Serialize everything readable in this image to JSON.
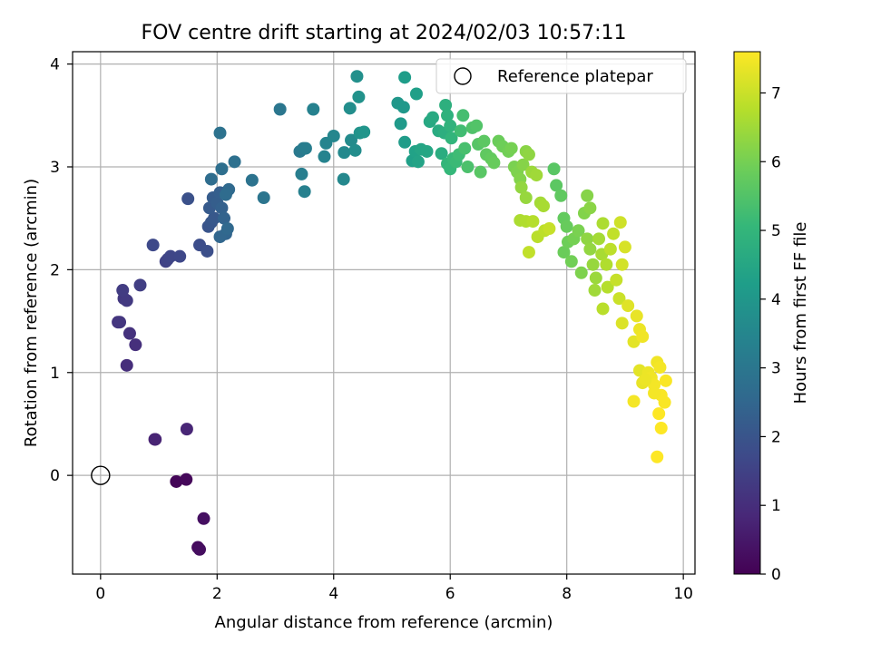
{
  "chart_data": {
    "type": "scatter",
    "title": "FOV centre drift starting at 2024/02/03 10:57:11",
    "xlabel": "Angular distance from reference (arcmin)",
    "ylabel": "Rotation from reference (arcmin)",
    "xlim": [
      -0.48,
      10.2
    ],
    "ylim": [
      -0.96,
      4.12
    ],
    "x_ticks": [
      0,
      2,
      4,
      6,
      8,
      10
    ],
    "y_ticks": [
      0,
      1,
      2,
      3,
      4
    ],
    "grid": true,
    "legend": {
      "placement": "top-right",
      "label": "Reference platepar",
      "marker": "open-circle"
    },
    "reference_point": {
      "x": 0,
      "y": 0
    },
    "colorbar": {
      "label": "Hours from first FF file",
      "colormap": "viridis",
      "range": [
        0,
        7.6
      ],
      "ticks": [
        0,
        1,
        2,
        3,
        4,
        5,
        6,
        7
      ]
    },
    "points": [
      [
        1.3,
        -0.06,
        0.1
      ],
      [
        1.47,
        -0.04,
        0.15
      ],
      [
        1.67,
        -0.7,
        0.2
      ],
      [
        1.7,
        -0.72,
        0.25
      ],
      [
        1.77,
        -0.42,
        0.3
      ],
      [
        0.93,
        0.35,
        0.7
      ],
      [
        0.94,
        0.35,
        0.75
      ],
      [
        1.48,
        0.45,
        0.8
      ],
      [
        0.45,
        1.07,
        1.0
      ],
      [
        0.6,
        1.27,
        1.05
      ],
      [
        0.5,
        1.38,
        1.1
      ],
      [
        0.3,
        1.49,
        1.15
      ],
      [
        0.33,
        1.49,
        1.2
      ],
      [
        0.4,
        1.72,
        1.25
      ],
      [
        0.45,
        1.7,
        1.3
      ],
      [
        0.38,
        1.8,
        1.35
      ],
      [
        0.68,
        1.85,
        1.4
      ],
      [
        1.12,
        2.08,
        1.5
      ],
      [
        1.15,
        2.1,
        1.55
      ],
      [
        1.2,
        2.13,
        1.6
      ],
      [
        1.36,
        2.13,
        1.65
      ],
      [
        0.9,
        2.24,
        1.7
      ],
      [
        1.7,
        2.24,
        1.8
      ],
      [
        1.83,
        2.18,
        1.85
      ],
      [
        1.5,
        2.69,
        1.9
      ],
      [
        1.85,
        2.42,
        2.0
      ],
      [
        1.9,
        2.46,
        2.05
      ],
      [
        1.95,
        2.5,
        2.1
      ],
      [
        1.87,
        2.6,
        2.15
      ],
      [
        1.93,
        2.7,
        2.2
      ],
      [
        2.0,
        2.65,
        2.25
      ],
      [
        2.05,
        2.75,
        2.3
      ],
      [
        2.08,
        2.6,
        2.35
      ],
      [
        2.12,
        2.5,
        2.4
      ],
      [
        2.15,
        2.35,
        2.45
      ],
      [
        2.05,
        2.32,
        2.5
      ],
      [
        2.18,
        2.4,
        2.55
      ],
      [
        2.2,
        2.78,
        2.6
      ],
      [
        2.15,
        2.73,
        2.65
      ],
      [
        1.9,
        2.88,
        2.7
      ],
      [
        2.08,
        2.98,
        2.75
      ],
      [
        2.3,
        3.05,
        2.8
      ],
      [
        2.05,
        3.33,
        2.85
      ],
      [
        2.6,
        2.87,
        2.9
      ],
      [
        2.8,
        2.7,
        2.95
      ],
      [
        3.08,
        3.56,
        3.0
      ],
      [
        3.42,
        3.15,
        3.1
      ],
      [
        3.48,
        3.18,
        3.15
      ],
      [
        3.52,
        3.18,
        3.2
      ],
      [
        3.45,
        2.93,
        3.25
      ],
      [
        3.5,
        2.76,
        3.3
      ],
      [
        3.65,
        3.56,
        3.35
      ],
      [
        3.84,
        3.1,
        3.4
      ],
      [
        3.87,
        3.23,
        3.45
      ],
      [
        4.0,
        3.3,
        3.5
      ],
      [
        4.17,
        2.88,
        3.55
      ],
      [
        4.18,
        3.14,
        3.6
      ],
      [
        4.3,
        3.26,
        3.65
      ],
      [
        4.37,
        3.16,
        3.7
      ],
      [
        4.28,
        3.57,
        3.75
      ],
      [
        4.4,
        3.88,
        3.8
      ],
      [
        4.43,
        3.68,
        3.85
      ],
      [
        4.45,
        3.33,
        3.9
      ],
      [
        4.52,
        3.34,
        3.95
      ],
      [
        5.1,
        3.62,
        4.0
      ],
      [
        5.2,
        3.58,
        4.05
      ],
      [
        5.15,
        3.42,
        4.1
      ],
      [
        5.22,
        3.24,
        4.15
      ],
      [
        5.22,
        3.87,
        4.2
      ],
      [
        5.42,
        3.71,
        4.25
      ],
      [
        5.35,
        3.06,
        4.3
      ],
      [
        5.4,
        3.15,
        4.35
      ],
      [
        5.45,
        3.05,
        4.4
      ],
      [
        5.5,
        3.17,
        4.45
      ],
      [
        5.6,
        3.15,
        4.5
      ],
      [
        5.65,
        3.44,
        4.55
      ],
      [
        5.7,
        3.48,
        4.6
      ],
      [
        5.8,
        3.35,
        4.65
      ],
      [
        5.85,
        3.13,
        4.7
      ],
      [
        5.9,
        3.33,
        4.75
      ],
      [
        5.92,
        3.6,
        4.8
      ],
      [
        5.95,
        3.5,
        4.85
      ],
      [
        6.0,
        3.4,
        4.9
      ],
      [
        6.02,
        3.28,
        4.95
      ],
      [
        5.95,
        3.03,
        5.0
      ],
      [
        6.0,
        2.98,
        5.05
      ],
      [
        6.05,
        3.08,
        5.1
      ],
      [
        6.1,
        3.05,
        5.15
      ],
      [
        6.15,
        3.12,
        5.2
      ],
      [
        6.18,
        3.35,
        5.25
      ],
      [
        6.22,
        3.5,
        5.3
      ],
      [
        6.25,
        3.18,
        5.35
      ],
      [
        6.3,
        3.0,
        5.4
      ],
      [
        6.38,
        3.38,
        5.45
      ],
      [
        6.45,
        3.4,
        5.5
      ],
      [
        6.48,
        3.22,
        5.55
      ],
      [
        6.52,
        2.95,
        5.6
      ],
      [
        6.58,
        3.25,
        5.65
      ],
      [
        6.62,
        3.12,
        5.7
      ],
      [
        6.7,
        3.08,
        5.75
      ],
      [
        6.75,
        3.04,
        5.8
      ],
      [
        6.83,
        3.25,
        5.85
      ],
      [
        6.9,
        3.2,
        5.9
      ],
      [
        7.0,
        3.15,
        5.95
      ],
      [
        7.05,
        3.18,
        6.0
      ],
      [
        7.1,
        3.0,
        6.05
      ],
      [
        7.15,
        2.95,
        6.1
      ],
      [
        7.2,
        2.88,
        6.15
      ],
      [
        7.25,
        3.02,
        6.2
      ],
      [
        7.3,
        3.15,
        6.25
      ],
      [
        7.35,
        3.12,
        6.3
      ],
      [
        7.22,
        2.8,
        6.35
      ],
      [
        7.3,
        2.7,
        6.4
      ],
      [
        7.4,
        2.95,
        6.45
      ],
      [
        7.48,
        2.92,
        6.5
      ],
      [
        7.55,
        2.65,
        6.55
      ],
      [
        7.6,
        2.62,
        6.6
      ],
      [
        7.2,
        2.48,
        6.65
      ],
      [
        7.3,
        2.47,
        6.7
      ],
      [
        7.42,
        2.47,
        6.75
      ],
      [
        7.5,
        2.32,
        6.8
      ],
      [
        7.62,
        2.38,
        6.85
      ],
      [
        7.35,
        2.17,
        6.9
      ],
      [
        7.7,
        2.4,
        6.95
      ]
    ],
    "points_b": [
      [
        7.78,
        2.98,
        5.6
      ],
      [
        7.82,
        2.82,
        5.65
      ],
      [
        7.9,
        2.72,
        5.7
      ],
      [
        7.95,
        2.5,
        5.75
      ],
      [
        8.0,
        2.42,
        5.8
      ],
      [
        7.95,
        2.17,
        5.85
      ],
      [
        8.02,
        2.27,
        5.9
      ],
      [
        8.08,
        2.08,
        5.95
      ],
      [
        8.12,
        2.3,
        6.0
      ],
      [
        8.2,
        2.38,
        6.05
      ],
      [
        8.25,
        1.97,
        6.1
      ],
      [
        8.3,
        2.55,
        6.15
      ],
      [
        8.35,
        2.72,
        6.2
      ],
      [
        8.4,
        2.6,
        6.25
      ],
      [
        8.35,
        2.3,
        6.3
      ],
      [
        8.4,
        2.2,
        6.35
      ],
      [
        8.45,
        2.05,
        6.4
      ],
      [
        8.5,
        1.92,
        6.45
      ],
      [
        8.48,
        1.8,
        6.5
      ],
      [
        8.55,
        2.3,
        6.55
      ],
      [
        8.6,
        2.15,
        6.6
      ],
      [
        8.62,
        2.45,
        6.65
      ],
      [
        8.68,
        2.05,
        6.7
      ],
      [
        8.7,
        1.83,
        6.75
      ],
      [
        8.62,
        1.62,
        6.8
      ],
      [
        8.75,
        2.2,
        6.85
      ],
      [
        8.8,
        2.35,
        6.9
      ],
      [
        8.85,
        1.9,
        6.95
      ],
      [
        8.9,
        1.72,
        7.0
      ],
      [
        8.92,
        2.46,
        7.05
      ],
      [
        8.95,
        2.05,
        7.1
      ],
      [
        9.0,
        2.22,
        7.15
      ],
      [
        8.95,
        1.48,
        7.2
      ],
      [
        9.05,
        1.65,
        7.25
      ],
      [
        9.15,
        1.3,
        7.3
      ],
      [
        9.2,
        1.55,
        7.35
      ],
      [
        9.25,
        1.42,
        7.4
      ],
      [
        9.3,
        1.35,
        7.45
      ],
      [
        9.15,
        0.72,
        7.5
      ],
      [
        9.25,
        1.02,
        7.3
      ],
      [
        9.3,
        0.9,
        7.35
      ],
      [
        9.4,
        1.0,
        7.4
      ],
      [
        9.45,
        0.95,
        7.45
      ],
      [
        9.5,
        0.88,
        7.5
      ],
      [
        9.55,
        1.1,
        7.45
      ],
      [
        9.6,
        1.05,
        7.5
      ],
      [
        9.62,
        0.78,
        7.55
      ],
      [
        9.68,
        0.71,
        7.55
      ],
      [
        9.58,
        0.6,
        7.6
      ],
      [
        9.62,
        0.46,
        7.6
      ],
      [
        9.55,
        0.18,
        7.6
      ],
      [
        9.7,
        0.92,
        7.55
      ],
      [
        9.5,
        0.8,
        7.5
      ],
      [
        9.35,
        0.93,
        7.4
      ]
    ]
  }
}
